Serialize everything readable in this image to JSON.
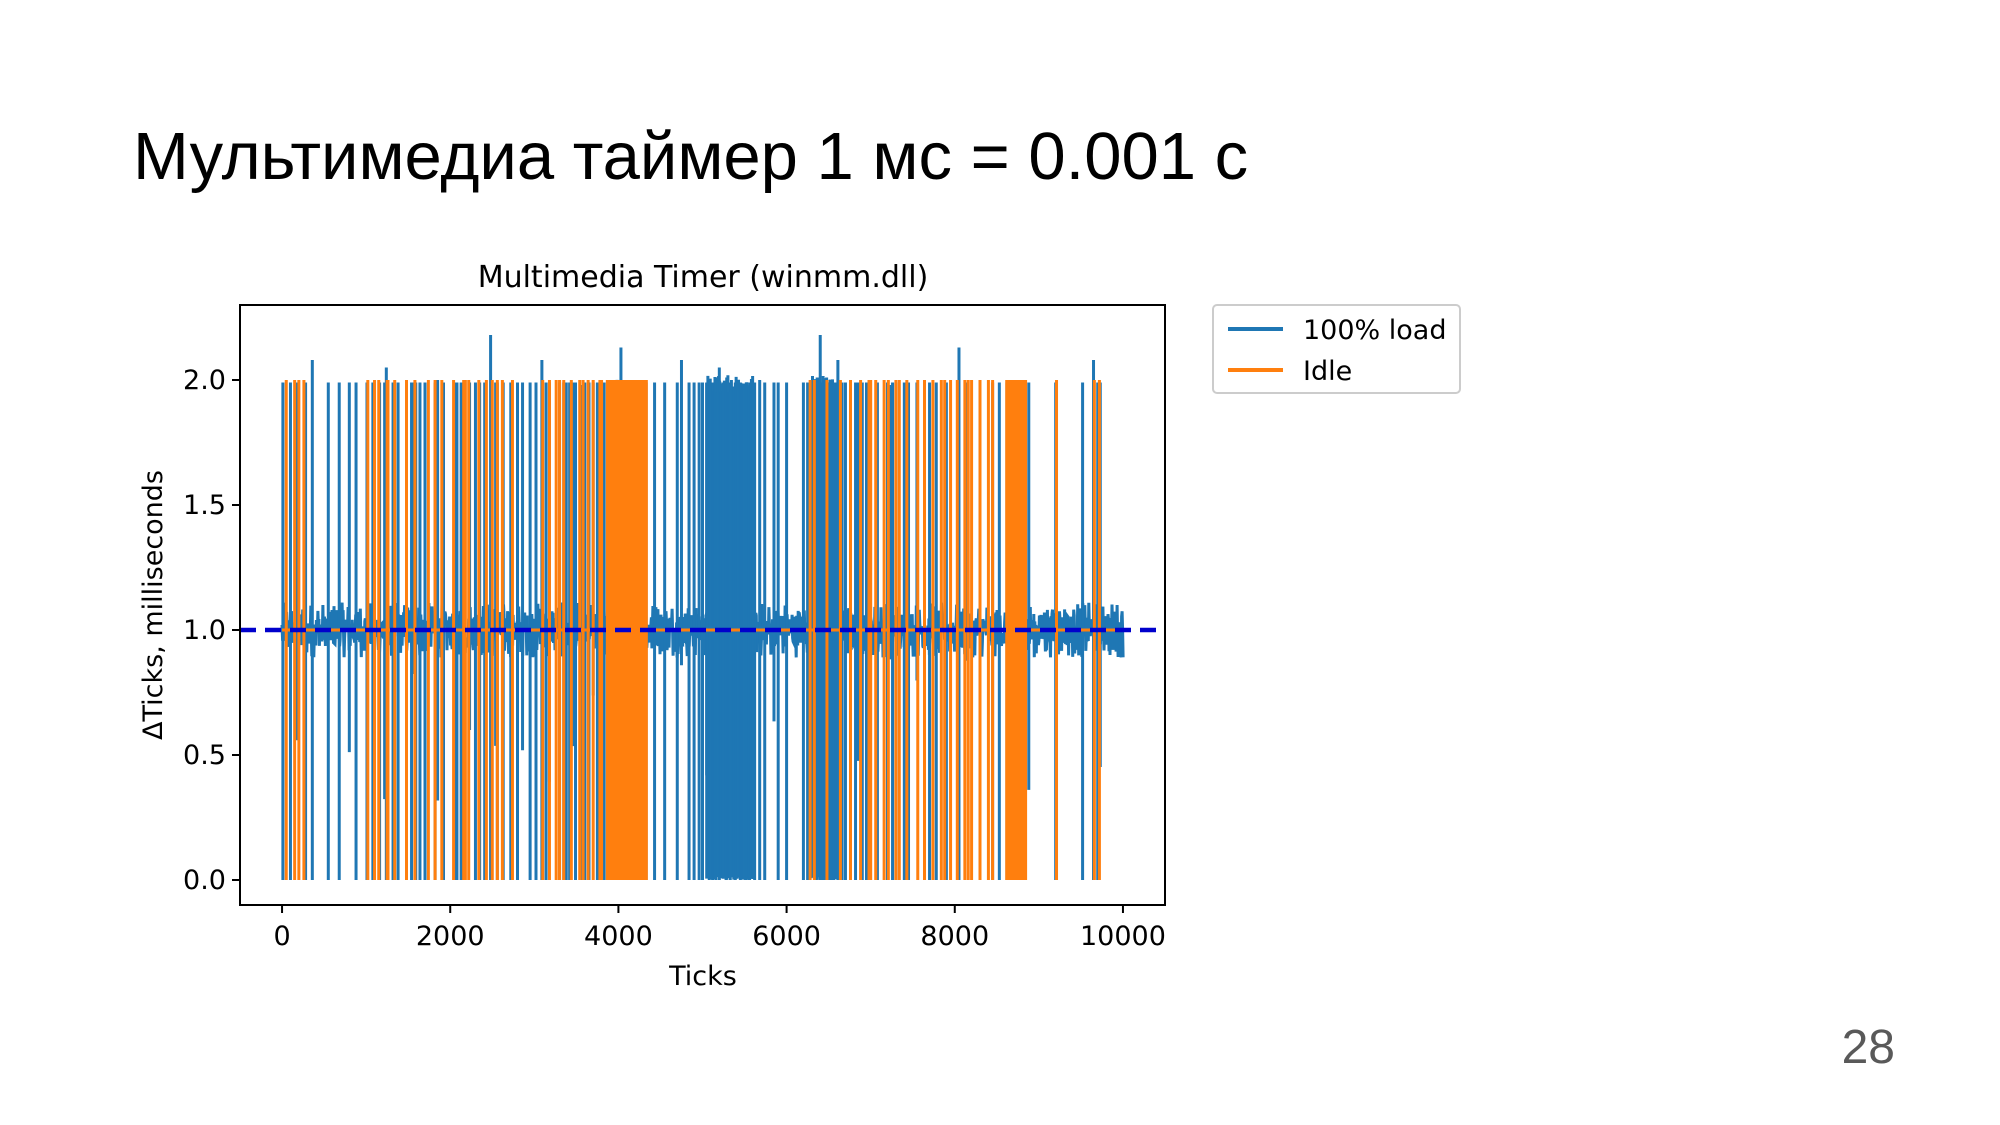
{
  "slide": {
    "title": "Мультимедиа таймер 1 мс = 0.001 с",
    "page_number": "28"
  },
  "chart_data": {
    "type": "line",
    "title": "Multimedia Timer (winmm.dll)",
    "xlabel": "Ticks",
    "ylabel": "ΔTicks, milliseconds",
    "xlim": [
      -500,
      10500
    ],
    "ylim": [
      -0.1,
      2.3
    ],
    "xticks": [
      0,
      2000,
      4000,
      6000,
      8000,
      10000
    ],
    "yticks": [
      0.0,
      0.5,
      1.0,
      1.5,
      2.0
    ],
    "ytick_labels": [
      "0.0",
      "0.5",
      "1.0",
      "1.5",
      "2.0"
    ],
    "grid": false,
    "legend_position": "outside-right",
    "series": [
      {
        "name": "100% load",
        "color": "#1f77b4",
        "n_points": 10000,
        "baseline": 1.0,
        "noise_band": [
          0.9,
          1.12
        ],
        "spike_ticks": [
          10,
          100,
          180,
          280,
          360,
          550,
          680,
          800,
          880,
          1010,
          1080,
          1160,
          1220,
          1240,
          1320,
          1380,
          1540,
          1560,
          1590,
          1640,
          1700,
          1820,
          1850,
          1920,
          2050,
          2080,
          2130,
          2230,
          2300,
          2350,
          2410,
          2480,
          2540,
          2560,
          2630,
          2720,
          2800,
          2860,
          2950,
          3020,
          3090,
          3140,
          3180,
          3300,
          3350,
          3380,
          3420,
          3470,
          3490,
          3550,
          3600,
          3650,
          3700,
          3750,
          3780,
          3830,
          3900,
          3960,
          4030,
          4100,
          4160,
          4200,
          4260,
          4330,
          4430,
          4550,
          4700,
          4750,
          4840,
          4900,
          4960,
          5000,
          5050,
          5080,
          5120,
          5160,
          5200,
          5240,
          5280,
          5330,
          5390,
          5450,
          5520,
          5560,
          5620,
          5680,
          5740,
          5850,
          5900,
          6000,
          6200,
          6250,
          6280,
          6350,
          6400,
          6420,
          6450,
          6470,
          6500,
          6520,
          6540,
          6560,
          6580,
          6610,
          6660,
          6700,
          6820,
          6850,
          6900,
          6950,
          7080,
          7200,
          7230,
          7260,
          7300,
          7400,
          7450,
          7550,
          7700,
          7780,
          7900,
          8050,
          8150,
          8300,
          8450,
          8530,
          8620,
          8880,
          9200,
          9520,
          9650,
          9700,
          9730
        ],
        "spike_highs": [
          1.98,
          2.0,
          2.13,
          2.18,
          2.08,
          2.08,
          2.05
        ],
        "spike_lows": [
          0.0,
          0.0,
          0.01
        ]
      },
      {
        "name": "Idle",
        "color": "#ff7f0e",
        "n_points": 10000,
        "baseline": 1.0,
        "high": 2.0,
        "low": 0.0,
        "spike_ticks": [
          50,
          150,
          200,
          260,
          1020,
          1100,
          1150,
          1250,
          1260,
          1340,
          1480,
          1580,
          1740,
          1820,
          1900,
          2040,
          2160,
          2180,
          2220,
          2340,
          2430,
          2500,
          2560,
          2620,
          2740,
          3100,
          3180,
          3260,
          3300,
          3350,
          3440,
          3540,
          3580,
          3640,
          3700,
          3780,
          3800,
          6280,
          6330,
          6480,
          6640,
          6760,
          6880,
          6980,
          7000,
          7060,
          7160,
          7210,
          7300,
          7340,
          7430,
          7560,
          7640,
          7740,
          7840,
          7880,
          7950,
          8030,
          8120,
          8160,
          8200,
          8300,
          8400,
          8450,
          9210,
          9660,
          9720
        ],
        "dense_blocks": [
          [
            3850,
            4350
          ],
          [
            8600,
            8860
          ]
        ]
      },
      {
        "name": "",
        "color": "#0000cc",
        "style": "dashed",
        "y": 1.0
      }
    ]
  }
}
